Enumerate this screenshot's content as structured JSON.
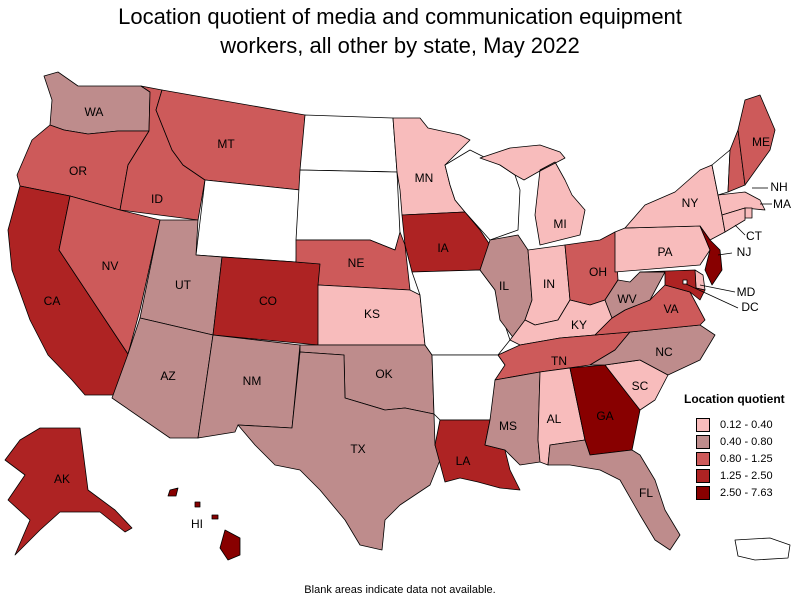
{
  "title_line1": "Location quotient of media and communication equipment",
  "title_line2": "workers, all other by state, May 2022",
  "legend": {
    "title": "Location quotient",
    "items": [
      {
        "label": "0.12 - 0.40",
        "color": "#f8bcbc"
      },
      {
        "label": "0.40 - 0.80",
        "color": "#be8c8c"
      },
      {
        "label": "0.80 - 1.25",
        "color": "#cd5a5a"
      },
      {
        "label": "1.25 - 2.50",
        "color": "#ae2323"
      },
      {
        "label": "2.50 - 7.63",
        "color": "#880000"
      }
    ]
  },
  "footnote": "Blank areas indicate data not available.",
  "states": [
    {
      "id": "WA",
      "cls": 1
    },
    {
      "id": "OR",
      "cls": 2
    },
    {
      "id": "CA",
      "cls": 3
    },
    {
      "id": "ID",
      "cls": 2
    },
    {
      "id": "NV",
      "cls": 2
    },
    {
      "id": "MT",
      "cls": 2
    },
    {
      "id": "WY",
      "cls": -1
    },
    {
      "id": "UT",
      "cls": 1
    },
    {
      "id": "AZ",
      "cls": 1
    },
    {
      "id": "CO",
      "cls": 3
    },
    {
      "id": "NM",
      "cls": 1
    },
    {
      "id": "ND",
      "cls": -1
    },
    {
      "id": "SD",
      "cls": -1
    },
    {
      "id": "NE",
      "cls": 2
    },
    {
      "id": "KS",
      "cls": 0
    },
    {
      "id": "OK",
      "cls": 1
    },
    {
      "id": "TX",
      "cls": 1
    },
    {
      "id": "MN",
      "cls": 0
    },
    {
      "id": "IA",
      "cls": 3
    },
    {
      "id": "MO",
      "cls": -1
    },
    {
      "id": "AR",
      "cls": -1
    },
    {
      "id": "LA",
      "cls": 3
    },
    {
      "id": "WI",
      "cls": -1
    },
    {
      "id": "IL",
      "cls": 1
    },
    {
      "id": "MI",
      "cls": 0
    },
    {
      "id": "IN",
      "cls": 0
    },
    {
      "id": "OH",
      "cls": 2
    },
    {
      "id": "KY",
      "cls": 0
    },
    {
      "id": "TN",
      "cls": 2
    },
    {
      "id": "MS",
      "cls": 1
    },
    {
      "id": "AL",
      "cls": 0
    },
    {
      "id": "GA",
      "cls": 4
    },
    {
      "id": "FL",
      "cls": 1
    },
    {
      "id": "SC",
      "cls": 0
    },
    {
      "id": "NC",
      "cls": 1
    },
    {
      "id": "VA",
      "cls": 2
    },
    {
      "id": "WV",
      "cls": 1
    },
    {
      "id": "PA",
      "cls": 0
    },
    {
      "id": "NY",
      "cls": 0
    },
    {
      "id": "VT",
      "cls": -1
    },
    {
      "id": "NH",
      "cls": 2
    },
    {
      "id": "ME",
      "cls": 2
    },
    {
      "id": "MA",
      "cls": 0
    },
    {
      "id": "RI",
      "cls": 0
    },
    {
      "id": "CT",
      "cls": 0
    },
    {
      "id": "NJ",
      "cls": 4
    },
    {
      "id": "DE",
      "cls": 0
    },
    {
      "id": "MD",
      "cls": 3
    },
    {
      "id": "DC",
      "cls": -1
    },
    {
      "id": "AK",
      "cls": 3
    },
    {
      "id": "HI",
      "cls": 4
    },
    {
      "id": "PR",
      "cls": -1
    }
  ],
  "labels": [
    "WA",
    "OR",
    "CA",
    "ID",
    "NV",
    "MT",
    "UT",
    "AZ",
    "CO",
    "NM",
    "NE",
    "KS",
    "OK",
    "TX",
    "MN",
    "IA",
    "IL",
    "MI",
    "IN",
    "OH",
    "KY",
    "TN",
    "MS",
    "AL",
    "GA",
    "FL",
    "SC",
    "NC",
    "VA",
    "WV",
    "PA",
    "NY",
    "ME",
    "NH",
    "MA",
    "CT",
    "NJ",
    "MD",
    "DC",
    "LA",
    "AK",
    "HI"
  ]
}
